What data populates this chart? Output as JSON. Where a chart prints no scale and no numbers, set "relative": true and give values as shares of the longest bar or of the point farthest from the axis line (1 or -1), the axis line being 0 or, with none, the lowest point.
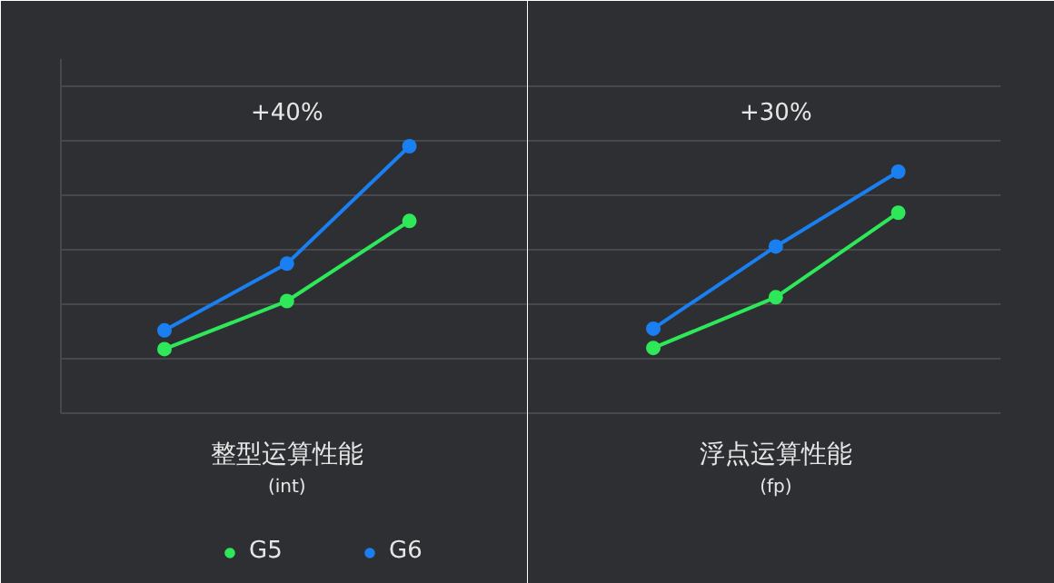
{
  "chart_data": [
    {
      "type": "line",
      "relative": true,
      "categories": [
        null,
        null,
        null
      ],
      "xlabel": "整型运算性能",
      "series": [
        {
          "name": "G5",
          "color": "#2ee85a",
          "values": [
            0.24,
            0.42,
            0.72
          ]
        },
        {
          "name": "G6",
          "color": "#1a7ff0",
          "values": [
            0.31,
            0.56,
            1.0
          ]
        }
      ],
      "annotations": [
        "+40%",
        "(int)"
      ],
      "grid": "y",
      "legend": "bottom",
      "marker": "circle",
      "line_style": "solid"
    },
    {
      "type": "line",
      "relative": true,
      "categories": [
        null,
        null,
        null
      ],
      "xlabel": "浮点运算性能",
      "series": [
        {
          "color": "#2ee85a",
          "values": [
            0.27,
            0.48,
            0.83
          ]
        },
        {
          "color": "#1a7ff0",
          "values": [
            0.35,
            0.69,
            1.0
          ]
        }
      ],
      "annotations": [
        "+30%",
        "(fp)"
      ],
      "grid": "y",
      "marker": "circle",
      "line_style": "solid"
    }
  ]
}
